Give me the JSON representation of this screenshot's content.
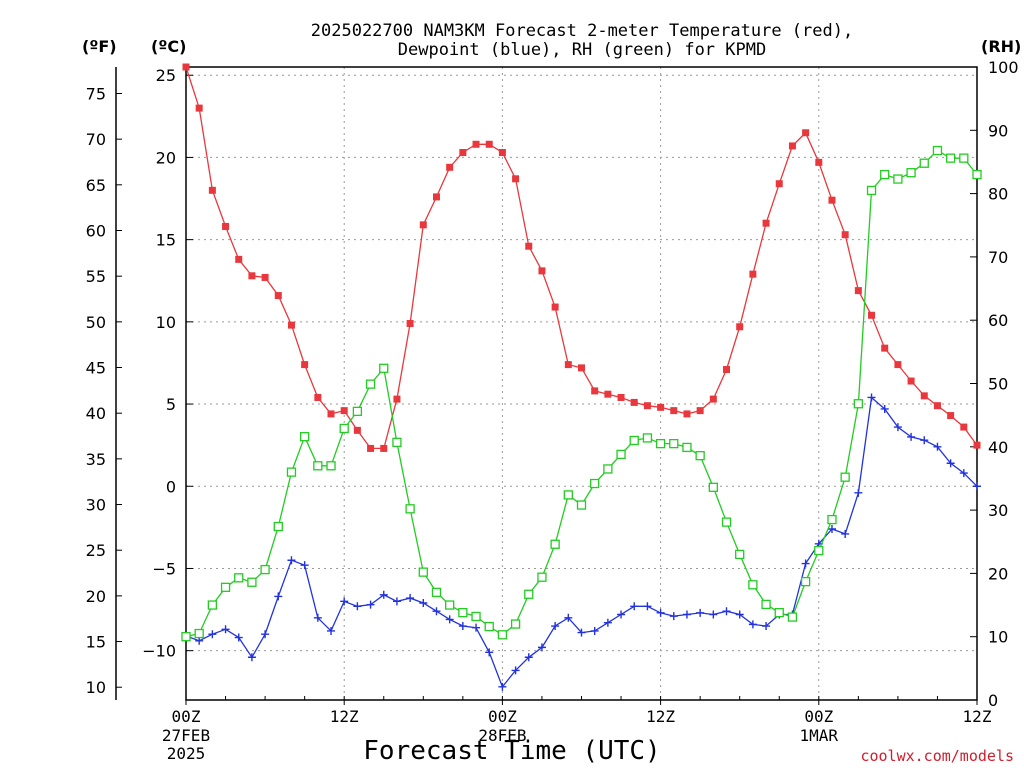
{
  "title_line1": "2025022700 NAM3KM Forecast 2-meter Temperature (red),",
  "title_line2": "Dewpoint (blue), RH (green) for KPMD",
  "units": {
    "f": "(ºF)",
    "c": "(ºC)",
    "rh": "(RH)"
  },
  "x_title": "Forecast Time (UTC)",
  "credit": "coolwx.com/models",
  "x_ticks": [
    {
      "hour": 0,
      "label": "00Z",
      "sub": [
        "27FEB",
        "2025"
      ]
    },
    {
      "hour": 12,
      "label": "12Z",
      "sub": []
    },
    {
      "hour": 24,
      "label": "00Z",
      "sub": [
        "28FEB"
      ]
    },
    {
      "hour": 36,
      "label": "12Z",
      "sub": []
    },
    {
      "hour": 48,
      "label": "00Z",
      "sub": [
        "1MAR"
      ]
    },
    {
      "hour": 60,
      "label": "12Z",
      "sub": []
    }
  ],
  "chart_data": {
    "type": "line",
    "x_unit": "forecast hour",
    "xlim": [
      0,
      60
    ],
    "ylim_c": [
      -13,
      25.5
    ],
    "ylim_rh": [
      0,
      100
    ],
    "axes": {
      "left_f_ticks": [
        10,
        15,
        20,
        25,
        30,
        35,
        40,
        45,
        50,
        55,
        60,
        65,
        70,
        75
      ],
      "left_c_ticks": [
        "−10",
        "−5",
        "0",
        "5",
        "10",
        "15",
        "20",
        "25"
      ],
      "right_rh_ticks": [
        0,
        10,
        20,
        30,
        40,
        50,
        60,
        70,
        80,
        90,
        100
      ]
    },
    "grid": true,
    "series": [
      {
        "name": "Temperature (red)",
        "color": "#e8383d",
        "marker": "square-filled",
        "axis": "c",
        "x": [
          0,
          1,
          2,
          3,
          4,
          5,
          6,
          7,
          8,
          9,
          10,
          11,
          12,
          13,
          14,
          15,
          16,
          17,
          18,
          19,
          20,
          21,
          22,
          23,
          24,
          25,
          26,
          27,
          28,
          29,
          30,
          31,
          32,
          33,
          34,
          35,
          36,
          37,
          38,
          39,
          40,
          41,
          42,
          43,
          44,
          45,
          46,
          47,
          48,
          49,
          50,
          51,
          52,
          53,
          54,
          55,
          56,
          57,
          58,
          59,
          60
        ],
        "values": [
          25.5,
          23.0,
          18.0,
          15.8,
          13.8,
          12.8,
          12.7,
          11.6,
          9.8,
          7.4,
          5.4,
          4.4,
          4.6,
          3.4,
          2.3,
          2.3,
          5.3,
          9.9,
          15.9,
          17.6,
          19.4,
          20.3,
          20.8,
          20.8,
          20.3,
          18.7,
          14.6,
          13.1,
          10.9,
          7.4,
          7.2,
          5.8,
          5.6,
          5.4,
          5.1,
          4.9,
          4.8,
          4.6,
          4.4,
          4.6,
          5.3,
          7.1,
          9.7,
          12.9,
          16.0,
          18.4,
          20.7,
          21.5,
          19.7,
          17.4,
          15.3,
          11.9,
          10.4,
          8.4,
          7.4,
          6.4,
          5.5,
          4.9,
          4.3,
          3.6,
          2.5
        ]
      },
      {
        "name": "Dewpoint (blue)",
        "color": "#2233dd",
        "marker": "plus",
        "axis": "c",
        "x": [
          0,
          1,
          2,
          3,
          4,
          5,
          6,
          7,
          8,
          9,
          10,
          11,
          12,
          13,
          14,
          15,
          16,
          17,
          18,
          19,
          20,
          21,
          22,
          23,
          24,
          25,
          26,
          27,
          28,
          29,
          30,
          31,
          32,
          33,
          34,
          35,
          36,
          37,
          38,
          39,
          40,
          41,
          42,
          43,
          44,
          45,
          46,
          47,
          48,
          49,
          50,
          51,
          52,
          53,
          54,
          55,
          56,
          57,
          58,
          59,
          60
        ],
        "values": [
          -9.1,
          -9.4,
          -9.0,
          -8.7,
          -9.2,
          -10.4,
          -9.0,
          -6.7,
          -4.5,
          -4.8,
          -8.0,
          -8.8,
          -7.0,
          -7.3,
          -7.2,
          -6.6,
          -7.0,
          -6.8,
          -7.1,
          -7.6,
          -8.1,
          -8.5,
          -8.6,
          -10.1,
          -12.2,
          -11.2,
          -10.4,
          -9.8,
          -8.5,
          -8.0,
          -8.9,
          -8.8,
          -8.3,
          -7.8,
          -7.3,
          -7.3,
          -7.7,
          -7.9,
          -7.8,
          -7.7,
          -7.8,
          -7.6,
          -7.8,
          -8.4,
          -8.5,
          -7.8,
          -7.8,
          -4.7,
          -3.5,
          -2.6,
          -2.9,
          -0.4,
          5.4,
          4.7,
          3.6,
          3.0,
          2.8,
          2.4,
          1.4,
          0.8,
          0.0
        ]
      },
      {
        "name": "RH (green)",
        "color": "#22cc22",
        "marker": "square-open",
        "axis": "rh",
        "x": [
          0,
          1,
          2,
          3,
          4,
          5,
          6,
          7,
          8,
          9,
          10,
          11,
          12,
          13,
          14,
          15,
          16,
          17,
          18,
          19,
          20,
          21,
          22,
          23,
          24,
          25,
          26,
          27,
          28,
          29,
          30,
          31,
          32,
          33,
          34,
          35,
          36,
          37,
          38,
          39,
          40,
          41,
          42,
          43,
          44,
          45,
          46,
          47,
          48,
          49,
          50,
          51,
          52,
          53,
          54,
          55,
          56,
          57,
          58,
          59,
          60
        ],
        "values": [
          10.0,
          10.5,
          15.0,
          17.8,
          19.3,
          18.6,
          20.6,
          27.4,
          36.0,
          41.6,
          37.0,
          37.0,
          42.9,
          45.6,
          49.9,
          52.4,
          40.7,
          30.2,
          20.2,
          17.0,
          15.0,
          13.8,
          13.2,
          11.6,
          10.3,
          12.0,
          16.7,
          19.4,
          24.6,
          32.4,
          30.8,
          34.2,
          36.5,
          38.8,
          41.0,
          41.4,
          40.5,
          40.5,
          39.9,
          38.6,
          33.6,
          28.1,
          23.0,
          18.2,
          15.1,
          13.8,
          13.1,
          18.7,
          23.6,
          28.5,
          35.2,
          46.8,
          80.5,
          83.0,
          82.3,
          83.3,
          84.8,
          86.8,
          85.6,
          85.6,
          83.0
        ]
      }
    ]
  }
}
